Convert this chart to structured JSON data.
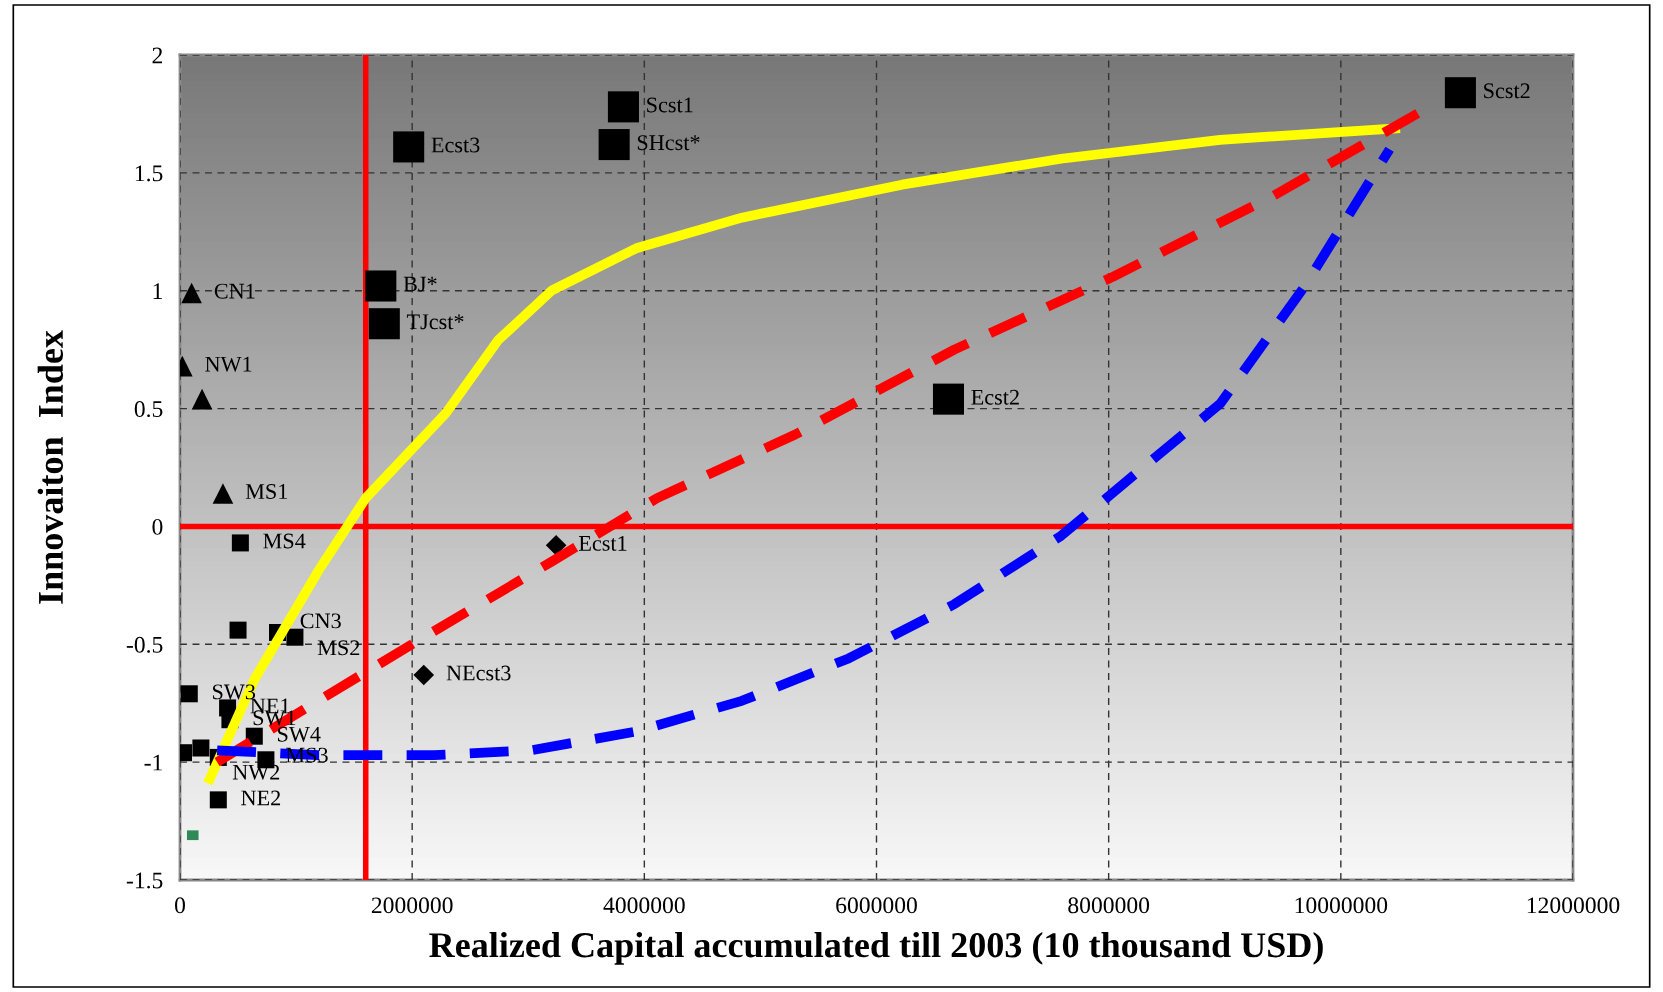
{
  "chart_data": {
    "type": "scatter",
    "xlabel": "Realized Capital accumulated till 2003 (10 thousand USD)",
    "ylabel": "Innovaiton  Index",
    "xlim": [
      0,
      12000000
    ],
    "xticks": [
      0,
      2000000,
      4000000,
      6000000,
      8000000,
      10000000,
      12000000
    ],
    "ylim": [
      -1.5,
      2
    ],
    "yticks": [
      -1.5,
      -1,
      -0.5,
      0,
      0.5,
      1,
      1.5,
      2
    ],
    "grid": true,
    "legend": false,
    "series": [
      {
        "marker": "triangle",
        "color": "#000000",
        "x": [
          100000,
          20000,
          190000,
          370000
        ],
        "values": [
          0.99,
          0.68,
          0.54,
          0.14
        ]
      },
      {
        "marker": "square",
        "color": "#000000",
        "x": [
          520000,
          500000,
          840000,
          990000,
          80000,
          410000,
          430000,
          640000,
          30000,
          180000,
          330000,
          740000,
          330000
        ],
        "values": [
          -0.07,
          -0.44,
          -0.45,
          -0.47,
          -0.71,
          -0.77,
          -0.82,
          -0.89,
          -0.96,
          -0.94,
          -0.98,
          -0.99,
          -1.16
        ]
      },
      {
        "marker": "square",
        "color": "#000000",
        "x": [
          1970000,
          3820000,
          3740000,
          1730000,
          1760000,
          6620000,
          11030000
        ],
        "values": [
          1.61,
          1.78,
          1.62,
          1.02,
          0.86,
          0.54,
          1.84
        ]
      },
      {
        "marker": "diamond",
        "color": "#000000",
        "x": [
          3240000,
          2100000
        ],
        "values": [
          -0.08,
          -0.63
        ]
      },
      {
        "type": "line",
        "line_style": "solid",
        "color": "#ffff00",
        "x": [
          240000,
          640000,
          1190000,
          1600000,
          2290000,
          2740000,
          3200000,
          3930000,
          4840000,
          6220000,
          7590000,
          8960000,
          10510000
        ],
        "values": [
          -1.09,
          -0.65,
          -0.19,
          0.12,
          0.48,
          0.79,
          1.0,
          1.18,
          1.31,
          1.45,
          1.56,
          1.64,
          1.69
        ]
      },
      {
        "type": "line",
        "line_style": "dashed",
        "color": "#ff0000",
        "x": [
          320000,
          1190000,
          2100000,
          3200000,
          4110000,
          5300000,
          6670000,
          8040000,
          9410000,
          10690000
        ],
        "values": [
          -1.0,
          -0.74,
          -0.47,
          -0.15,
          0.12,
          0.39,
          0.75,
          1.06,
          1.4,
          1.76
        ]
      },
      {
        "type": "line",
        "line_style": "dashed",
        "color": "#0000ff",
        "x": [
          320000,
          1190000,
          2190000,
          3020000,
          3930000,
          4840000,
          5760000,
          6670000,
          7590000,
          8320000,
          8960000,
          9690000,
          10420000
        ],
        "values": [
          -0.95,
          -0.97,
          -0.97,
          -0.95,
          -0.87,
          -0.74,
          -0.56,
          -0.33,
          -0.04,
          0.26,
          0.52,
          1.02,
          1.6
        ]
      },
      {
        "type": "line",
        "line_style": "solid",
        "color": "#2e8b57",
        "x": [
          60000,
          160000
        ],
        "values": [
          -1.31,
          -1.31
        ]
      }
    ],
    "ref_lines": [
      {
        "axis": "x",
        "value": 1600000,
        "color": "#ff0000"
      },
      {
        "axis": "y",
        "value": 0,
        "color": "#ff0000"
      }
    ],
    "annotations": [
      {
        "text": "CN1",
        "x": 100000,
        "y": 0.99
      },
      {
        "text": "NW1",
        "x": 20000,
        "y": 0.68
      },
      {
        "text": "MS1",
        "x": 370000,
        "y": 0.14
      },
      {
        "text": "MS4",
        "x": 520000,
        "y": -0.07
      },
      {
        "text": "CN3",
        "x": 840000,
        "y": -0.45
      },
      {
        "text": "MS2",
        "x": 990000,
        "y": -0.47
      },
      {
        "text": "SW3",
        "x": 80000,
        "y": -0.71
      },
      {
        "text": "NE1",
        "x": 410000,
        "y": -0.77
      },
      {
        "text": "SW1",
        "x": 430000,
        "y": -0.82
      },
      {
        "text": "SW4",
        "x": 640000,
        "y": -0.89
      },
      {
        "text": "NW2",
        "x": 330000,
        "y": -0.98
      },
      {
        "text": "MS3",
        "x": 740000,
        "y": -0.99
      },
      {
        "text": "NE2",
        "x": 330000,
        "y": -1.16
      },
      {
        "text": "Ecst1",
        "x": 3240000,
        "y": -0.08
      },
      {
        "text": "NEcst3",
        "x": 2100000,
        "y": -0.63
      },
      {
        "text": "Ecst3",
        "x": 1970000,
        "y": 1.61
      },
      {
        "text": "Scst1",
        "x": 3820000,
        "y": 1.78
      },
      {
        "text": "SHcst*",
        "x": 3740000,
        "y": 1.62
      },
      {
        "text": "BJ*",
        "x": 1730000,
        "y": 1.02
      },
      {
        "text": "TJcst*",
        "x": 1760000,
        "y": 0.86
      },
      {
        "text": "Ecst2",
        "x": 6620000,
        "y": 0.54
      },
      {
        "text": "Scst2",
        "x": 11030000,
        "y": 1.84
      }
    ]
  }
}
